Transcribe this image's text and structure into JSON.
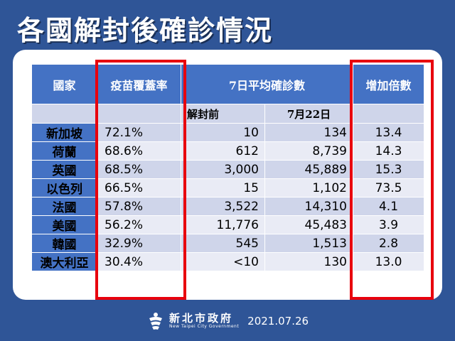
{
  "title": "各國解封後確診情況",
  "headers": {
    "country": "國家",
    "vaccine": "疫苗覆蓋率",
    "avg": "7日平均確診數",
    "multiplier": "增加倍數"
  },
  "subheaders": {
    "before": "解封前",
    "date": "7月22日"
  },
  "rows": [
    {
      "country": "新加坡",
      "vaccine": "72.1%",
      "before": "10",
      "after": "134",
      "multiplier": "13.4"
    },
    {
      "country": "荷蘭",
      "vaccine": "68.6%",
      "before": "612",
      "after": "8,739",
      "multiplier": "14.3"
    },
    {
      "country": "英國",
      "vaccine": "68.5%",
      "before": "3,000",
      "after": "45,889",
      "multiplier": "15.3"
    },
    {
      "country": "以色列",
      "vaccine": "66.5%",
      "before": "15",
      "after": "1,102",
      "multiplier": "73.5"
    },
    {
      "country": "法國",
      "vaccine": "57.8%",
      "before": "3,522",
      "after": "14,310",
      "multiplier": "4.1"
    },
    {
      "country": "美國",
      "vaccine": "56.2%",
      "before": "11,776",
      "after": "45,483",
      "multiplier": "3.9"
    },
    {
      "country": "韓國",
      "vaccine": "32.9%",
      "before": "545",
      "after": "1,513",
      "multiplier": "2.8"
    },
    {
      "country": "澳大利亞",
      "vaccine": "30.4%",
      "before": "<10",
      "after": "130",
      "multiplier": "13.0"
    }
  ],
  "footer": {
    "org_name": "新北市政府",
    "org_name_en": "New Taipei City Government",
    "date": "2021.07.26"
  },
  "colors": {
    "background": "#2f5597",
    "header": "#4472c4",
    "row_light": "#e9ebf5",
    "row_dark": "#cfd5ea",
    "highlight": "#e8000d"
  }
}
